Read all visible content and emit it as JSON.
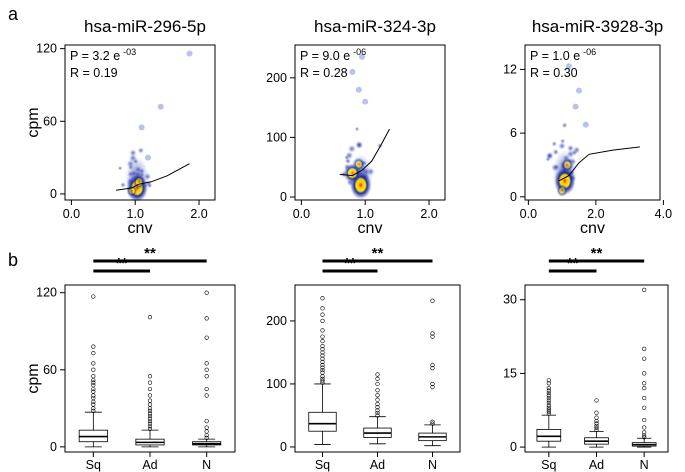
{
  "panels": [
    {
      "label": "a"
    },
    {
      "label": "b"
    }
  ],
  "chart_data": [
    {
      "type": "scatter",
      "style": "density",
      "title": "hsa-miR-296-5p",
      "xlabel": "cnv",
      "ylabel": "cpm",
      "xlim": [
        -0.1,
        2.25
      ],
      "ylim": [
        -5,
        123
      ],
      "xticks": [
        "0.0",
        "1.0",
        "2.0"
      ],
      "xtick_values": [
        0,
        1,
        2
      ],
      "yticks": [
        "0",
        "60",
        "120"
      ],
      "ytick_values": [
        0,
        60,
        120
      ],
      "annotation": {
        "p_label": "P = 3.2 e",
        "p_exp": "-03",
        "r_label": "R = 0.19"
      },
      "trend": {
        "x": [
          0.7,
          0.95,
          1.05,
          1.25,
          1.5,
          1.85
        ],
        "y": [
          3,
          5,
          8,
          10,
          15,
          25
        ]
      },
      "density_peaks": [
        {
          "x": 1.03,
          "y": 5,
          "z": 1.0
        },
        {
          "x": 1.06,
          "y": 10,
          "z": 0.45
        },
        {
          "x": 0.95,
          "y": 2.5,
          "z": 0.3
        }
      ],
      "outliers": [
        {
          "x": 1.85,
          "y": 116
        },
        {
          "x": 1.1,
          "y": 55
        },
        {
          "x": 1.4,
          "y": 72
        },
        {
          "x": 1.2,
          "y": 30
        }
      ]
    },
    {
      "type": "scatter",
      "style": "density",
      "title": "hsa-miR-324-3p",
      "xlabel": "cnv",
      "ylabel": "",
      "xlim": [
        -0.1,
        2.25
      ],
      "ylim": [
        -5,
        255
      ],
      "xticks": [
        "0.0",
        "1.0",
        "2.0"
      ],
      "xtick_values": [
        0,
        1,
        2
      ],
      "yticks": [
        "0",
        "100",
        "200"
      ],
      "ytick_values": [
        0,
        100,
        200
      ],
      "annotation": {
        "p_label": "P = 9.0 e",
        "p_exp": "-06",
        "r_label": "R = 0.28"
      },
      "trend": {
        "x": [
          0.6,
          0.8,
          0.95,
          1.1,
          1.25,
          1.38
        ],
        "y": [
          38,
          36,
          45,
          60,
          88,
          114
        ]
      },
      "density_peaks": [
        {
          "x": 0.93,
          "y": 20,
          "z": 1.0
        },
        {
          "x": 0.8,
          "y": 40,
          "z": 0.75
        },
        {
          "x": 0.9,
          "y": 55,
          "z": 0.4
        }
      ],
      "outliers": [
        {
          "x": 0.95,
          "y": 235
        },
        {
          "x": 0.9,
          "y": 180
        },
        {
          "x": 1.0,
          "y": 160
        },
        {
          "x": 0.8,
          "y": 210
        }
      ]
    },
    {
      "type": "scatter",
      "style": "density",
      "title": "hsa-miR-3928-3p",
      "xlabel": "cnv",
      "ylabel": "",
      "xlim": [
        -0.1,
        3.9
      ],
      "ylim": [
        -0.3,
        14.3
      ],
      "xticks": [
        "0.0",
        "2.0",
        "4.0"
      ],
      "xtick_values": [
        0,
        2,
        4
      ],
      "yticks": [
        "0",
        "6",
        "12"
      ],
      "ytick_values": [
        0,
        6,
        12
      ],
      "annotation": {
        "p_label": "P = 1.0 e",
        "p_exp": "-06",
        "r_label": "R = 0.30"
      },
      "trend": {
        "x": [
          0.9,
          1.2,
          1.5,
          1.8,
          2.5,
          3.3
        ],
        "y": [
          1.5,
          2.0,
          3.2,
          4.0,
          4.4,
          4.7
        ]
      },
      "density_peaks": [
        {
          "x": 1.08,
          "y": 1.5,
          "z": 1.0
        },
        {
          "x": 1.15,
          "y": 3.0,
          "z": 0.45
        },
        {
          "x": 1.0,
          "y": 0.6,
          "z": 0.35
        }
      ],
      "outliers": [
        {
          "x": 1.2,
          "y": 12.3
        },
        {
          "x": 1.5,
          "y": 10.0
        },
        {
          "x": 1.4,
          "y": 8.5
        },
        {
          "x": 1.7,
          "y": 6.8
        }
      ]
    },
    {
      "type": "box",
      "title": "",
      "xlabel": "",
      "ylabel": "cpm",
      "ylim": [
        -4,
        126
      ],
      "yticks": [
        "0",
        "60",
        "120"
      ],
      "ytick_values": [
        0,
        60,
        120
      ],
      "categories": [
        "Sq",
        "Ad",
        "N"
      ],
      "boxes": [
        {
          "name": "Sq",
          "whisker_low": 0,
          "q1": 4,
          "median": 8,
          "q3": 13,
          "whisker_high": 27
        },
        {
          "name": "Ad",
          "whisker_low": 0,
          "q1": 1.5,
          "median": 3.5,
          "q3": 6,
          "whisker_high": 13
        },
        {
          "name": "N",
          "whisker_low": 0,
          "q1": 1.5,
          "median": 2.5,
          "q3": 4,
          "whisker_high": 6
        }
      ],
      "outliers": [
        [
          28,
          30,
          33,
          35,
          38,
          40,
          43,
          45,
          48,
          50,
          52,
          55,
          60,
          65,
          73,
          78,
          117
        ],
        [
          14,
          16,
          18,
          20,
          22,
          24,
          26,
          28,
          30,
          33,
          36,
          40,
          45,
          50,
          55,
          101
        ],
        [
          7,
          9,
          12,
          15,
          20,
          40,
          45,
          55,
          60,
          65,
          85,
          100,
          120
        ]
      ],
      "significance": [
        {
          "from": "Sq",
          "to": "Ad",
          "label": "**"
        },
        {
          "from": "Sq",
          "to": "N",
          "label": "**"
        }
      ]
    },
    {
      "type": "box",
      "title": "",
      "xlabel": "",
      "ylabel": "",
      "ylim": [
        -8,
        257
      ],
      "yticks": [
        "0",
        "100",
        "200"
      ],
      "ytick_values": [
        0,
        100,
        200
      ],
      "categories": [
        "Sq",
        "Ad",
        "N"
      ],
      "boxes": [
        {
          "name": "Sq",
          "whisker_low": 4,
          "q1": 25,
          "median": 37,
          "q3": 55,
          "whisker_high": 100
        },
        {
          "name": "Ad",
          "whisker_low": 5,
          "q1": 15,
          "median": 22,
          "q3": 30,
          "whisker_high": 48
        },
        {
          "name": "N",
          "whisker_low": 2,
          "q1": 10,
          "median": 16,
          "q3": 22,
          "whisker_high": 35
        }
      ],
      "outliers": [
        [
          102,
          105,
          108,
          112,
          118,
          122,
          126,
          130,
          135,
          140,
          145,
          150,
          155,
          160,
          168,
          175,
          185,
          200,
          210,
          220,
          236
        ],
        [
          50,
          54,
          58,
          63,
          68,
          75,
          82,
          90,
          100,
          108,
          115
        ],
        [
          37,
          40,
          95,
          100,
          125,
          130,
          175,
          180,
          232
        ]
      ],
      "significance": [
        {
          "from": "Sq",
          "to": "Ad",
          "label": "**"
        },
        {
          "from": "Sq",
          "to": "N",
          "label": "**"
        }
      ]
    },
    {
      "type": "box",
      "title": "",
      "xlabel": "",
      "ylabel": "",
      "ylim": [
        -1,
        33
      ],
      "yticks": [
        "0",
        "15",
        "30"
      ],
      "ytick_values": [
        0,
        15,
        30
      ],
      "categories": [
        "Sq",
        "Ad",
        "N"
      ],
      "boxes": [
        {
          "name": "Sq",
          "whisker_low": 0,
          "q1": 1.2,
          "median": 2.2,
          "q3": 3.6,
          "whisker_high": 6.5
        },
        {
          "name": "Ad",
          "whisker_low": 0,
          "q1": 0.6,
          "median": 1.2,
          "q3": 1.9,
          "whisker_high": 3.2
        },
        {
          "name": "N",
          "whisker_low": 0,
          "q1": 0.2,
          "median": 0.5,
          "q3": 0.9,
          "whisker_high": 1.8
        }
      ],
      "outliers": [
        [
          6.8,
          7.2,
          7.6,
          8,
          8.5,
          9,
          9.5,
          10,
          10.5,
          11,
          11.5,
          12,
          13,
          13.6
        ],
        [
          3.5,
          3.9,
          4.3,
          4.8,
          5.3,
          6,
          7,
          9.5
        ],
        [
          2,
          2.4,
          3,
          4,
          5.5,
          8,
          10,
          12,
          13,
          15,
          18,
          20,
          32
        ]
      ],
      "significance": [
        {
          "from": "Sq",
          "to": "Ad",
          "label": "**"
        },
        {
          "from": "Sq",
          "to": "N",
          "label": "**"
        }
      ]
    }
  ]
}
